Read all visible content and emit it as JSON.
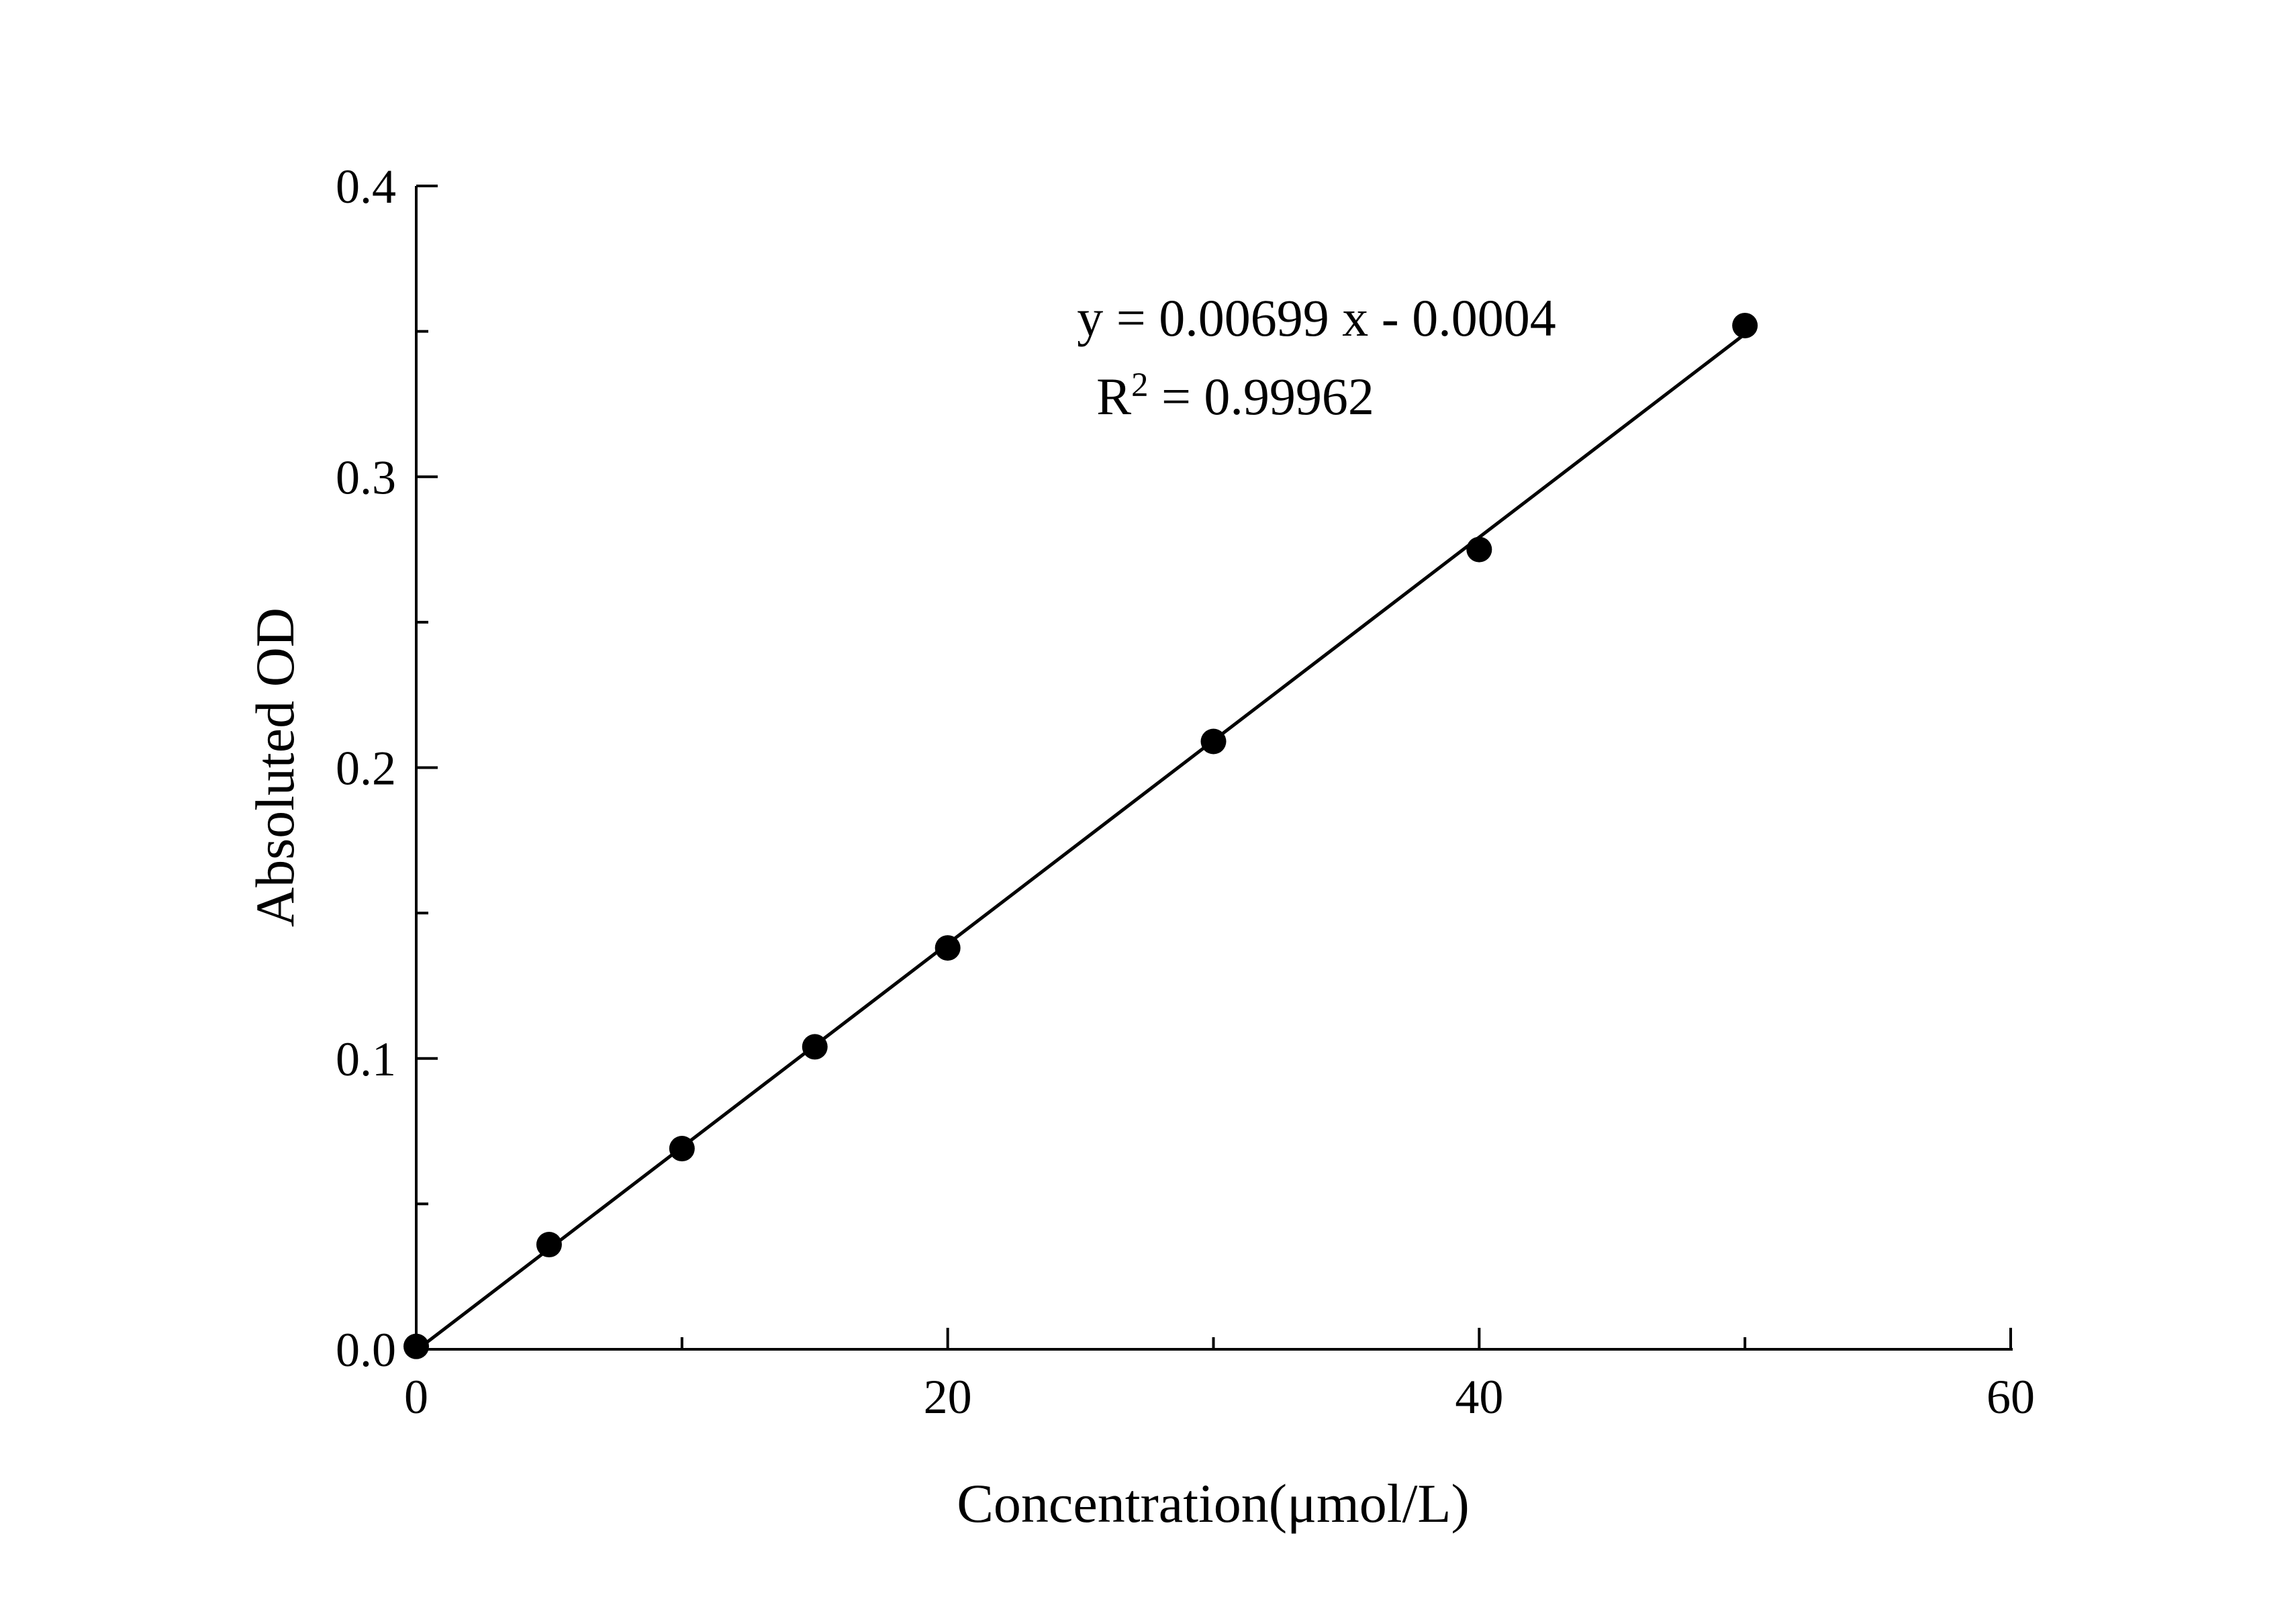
{
  "chart_data": {
    "type": "scatter",
    "title": "",
    "xlabel": "Concentration(μmol/L)",
    "ylabel": "Absoluted OD",
    "x": [
      0,
      5,
      10,
      15,
      20,
      30,
      40,
      50
    ],
    "y": [
      0.001,
      0.036,
      0.069,
      0.104,
      0.138,
      0.209,
      0.275,
      0.352
    ],
    "fit_line": {
      "slope": 0.00699,
      "intercept": -0.0004,
      "x_start": 0,
      "x_end": 50.4
    },
    "xlim": [
      0,
      60
    ],
    "ylim": [
      0,
      0.4
    ],
    "x_major_ticks": [
      0,
      20,
      40,
      60
    ],
    "x_major_labels": [
      "0",
      "20",
      "40",
      "60"
    ],
    "x_minor_ticks": [
      10,
      30,
      50
    ],
    "y_major_ticks": [
      0,
      0.1,
      0.2,
      0.3,
      0.4
    ],
    "y_major_labels": [
      "0.0",
      "0.1",
      "0.2",
      "0.3",
      "0.4"
    ],
    "y_minor_ticks": [
      0.05,
      0.15,
      0.25,
      0.35
    ],
    "grid": false,
    "legend": "none",
    "annotation": {
      "equation": "y = 0.00699 x - 0.0004",
      "r2_prefix": "R",
      "r2_sup": "2",
      "r2_rest": " = 0.99962"
    },
    "colors": {
      "marker": "#000000",
      "line": "#000000",
      "axis": "#000000",
      "text": "#000000",
      "background": "#ffffff"
    }
  }
}
